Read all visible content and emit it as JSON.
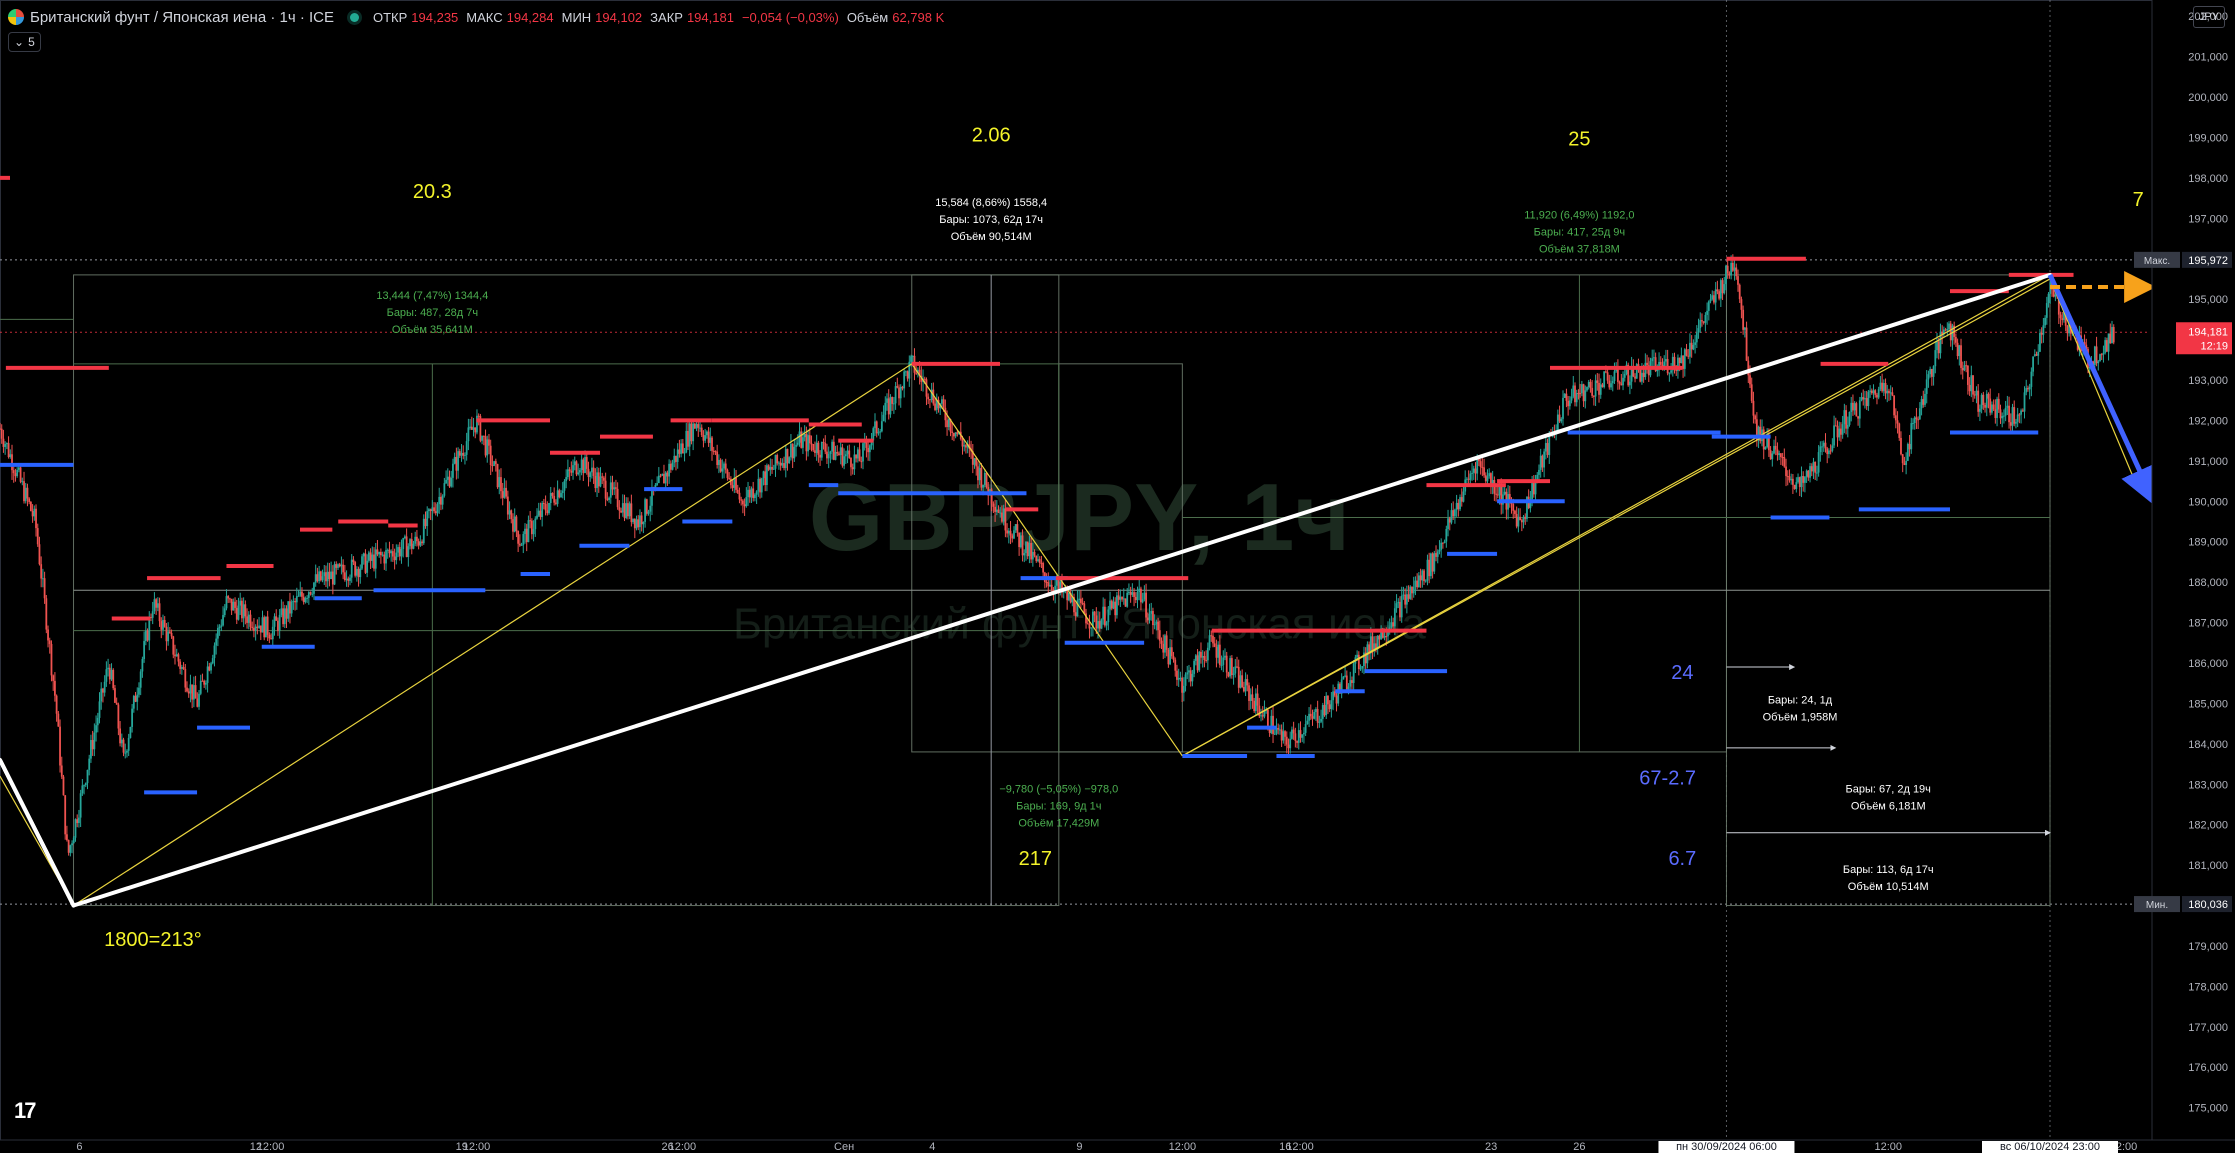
{
  "header": {
    "title": "Британский фунт / Японская иена · 1ч · ICE",
    "open_label": "ОТКР",
    "open": "194,235",
    "high_label": "МАКС",
    "high": "194,284",
    "low_label": "МИН",
    "low": "194,102",
    "close_label": "ЗАКР",
    "close": "194,181",
    "change": "−0,054 (−0,03%)",
    "volume_label": "Объём",
    "volume": "62,798 K",
    "status_color": "#22ab94"
  },
  "indicator_toggle": {
    "count": "5"
  },
  "currency_button": "JPY",
  "watermark": {
    "symbol": "GBPJPY, 1ч",
    "name": "Британский фунт / Японская иена"
  },
  "chart_data": {
    "type": "candlestick",
    "symbol": "GBPJPY",
    "timeframe": "1h",
    "ylim": [
      174.2,
      202.4
    ],
    "y_ticks": [
      "202,000",
      "201,000",
      "200,000",
      "199,000",
      "198,000",
      "197,000",
      "196,000",
      "195,000",
      "194,000",
      "193,000",
      "192,000",
      "191,000",
      "190,000",
      "189,000",
      "188,000",
      "187,000",
      "186,000",
      "185,000",
      "184,000",
      "183,000",
      "182,000",
      "181,000",
      "180,000",
      "179,000",
      "178,000",
      "177,000",
      "176,000",
      "175,000"
    ],
    "x_ticks": [
      "6",
      "12",
      "12:00",
      "19",
      "12:00",
      "26",
      "12:00",
      "Сен",
      "4",
      "9",
      "12:00",
      "16",
      "12:00",
      "23",
      "26",
      "12:00",
      "14",
      "12:00"
    ],
    "x_tick_days": [
      6,
      12,
      12.5,
      19,
      19.5,
      26,
      26.5,
      32,
      35,
      40,
      43.5,
      47,
      47.5,
      54,
      57,
      67.5,
      75,
      75.5
    ],
    "x_range_days": [
      3.3,
      76.4
    ],
    "current_price": {
      "label": "194,181",
      "countdown": "12:19",
      "color": "#f23645"
    },
    "max_marker": {
      "label": "Макс.",
      "value": "195,972"
    },
    "min_marker": {
      "label": "Мин.",
      "value": "180,036"
    },
    "crosshair_labels": [
      "пн 30/09/2024   06:00",
      "вс 06/10/2024   23:00"
    ],
    "series_outline": [
      [
        3.3,
        191.8
      ],
      [
        4.5,
        189.5
      ],
      [
        5.2,
        185.0
      ],
      [
        5.6,
        181.2
      ],
      [
        6.0,
        182.5
      ],
      [
        7.0,
        186.0
      ],
      [
        7.5,
        183.6
      ],
      [
        8.5,
        187.5
      ],
      [
        10.0,
        185.0
      ],
      [
        11.0,
        187.5
      ],
      [
        12.5,
        186.8
      ],
      [
        14.0,
        188.0
      ],
      [
        15.5,
        188.4
      ],
      [
        17.5,
        189.0
      ],
      [
        19.5,
        192.0
      ],
      [
        21.0,
        189.0
      ],
      [
        23.0,
        191.0
      ],
      [
        25.0,
        189.5
      ],
      [
        27.0,
        192.0
      ],
      [
        28.5,
        190.0
      ],
      [
        30.5,
        191.5
      ],
      [
        32.5,
        191.0
      ],
      [
        34.3,
        193.4
      ],
      [
        36.0,
        191.5
      ],
      [
        37.5,
        189.5
      ],
      [
        39.0,
        188.0
      ],
      [
        40.5,
        187.0
      ],
      [
        42.0,
        187.8
      ],
      [
        43.5,
        185.5
      ],
      [
        44.5,
        186.5
      ],
      [
        45.5,
        185.5
      ],
      [
        47.0,
        184.0
      ],
      [
        48.5,
        185.0
      ],
      [
        50.5,
        187.0
      ],
      [
        52.0,
        188.5
      ],
      [
        53.5,
        191.0
      ],
      [
        55.0,
        189.5
      ],
      [
        56.5,
        192.5
      ],
      [
        58.0,
        193.0
      ],
      [
        60.5,
        193.5
      ],
      [
        62.3,
        196.0
      ],
      [
        63.0,
        191.8
      ],
      [
        64.5,
        190.3
      ],
      [
        66.0,
        192.0
      ],
      [
        67.5,
        193.0
      ],
      [
        68.0,
        191.0
      ],
      [
        69.5,
        194.5
      ],
      [
        70.5,
        192.5
      ],
      [
        72.0,
        192.0
      ],
      [
        73.0,
        195.2
      ],
      [
        74.3,
        193.5
      ],
      [
        75.2,
        194.1
      ]
    ],
    "swing_path": [
      [
        3.3,
        183.2
      ],
      [
        5.8,
        180.0
      ],
      [
        34.3,
        193.4
      ],
      [
        43.5,
        183.7
      ],
      [
        73.0,
        195.5
      ],
      [
        76.0,
        190.3
      ]
    ],
    "horizontal_levels": [
      {
        "y": 193.3,
        "x0": 3.5,
        "x1": 7.0,
        "color": "red"
      },
      {
        "y": 190.9,
        "x0": 3.3,
        "x1": 5.8,
        "color": "blue"
      },
      {
        "y": 187.1,
        "x0": 7.1,
        "x1": 8.4,
        "color": "red"
      },
      {
        "y": 182.8,
        "x0": 8.2,
        "x1": 10.0,
        "color": "blue"
      },
      {
        "y": 188.1,
        "x0": 8.3,
        "x1": 10.8,
        "color": "red"
      },
      {
        "y": 184.4,
        "x0": 10.0,
        "x1": 11.8,
        "color": "blue"
      },
      {
        "y": 188.4,
        "x0": 11.0,
        "x1": 12.6,
        "color": "red"
      },
      {
        "y": 186.4,
        "x0": 12.2,
        "x1": 14.0,
        "color": "blue"
      },
      {
        "y": 189.3,
        "x0": 13.5,
        "x1": 14.6,
        "color": "red"
      },
      {
        "y": 187.6,
        "x0": 14.0,
        "x1": 15.6,
        "color": "blue"
      },
      {
        "y": 189.5,
        "x0": 14.8,
        "x1": 16.5,
        "color": "red"
      },
      {
        "y": 187.8,
        "x0": 16.0,
        "x1": 19.8,
        "color": "blue"
      },
      {
        "y": 189.4,
        "x0": 16.5,
        "x1": 17.5,
        "color": "red"
      },
      {
        "y": 192.0,
        "x0": 19.5,
        "x1": 22.0,
        "color": "red"
      },
      {
        "y": 188.2,
        "x0": 21.0,
        "x1": 22.0,
        "color": "blue"
      },
      {
        "y": 191.2,
        "x0": 22.0,
        "x1": 23.7,
        "color": "red"
      },
      {
        "y": 188.9,
        "x0": 23.0,
        "x1": 24.7,
        "color": "blue"
      },
      {
        "y": 191.6,
        "x0": 23.7,
        "x1": 25.5,
        "color": "red"
      },
      {
        "y": 190.3,
        "x0": 25.2,
        "x1": 26.5,
        "color": "blue"
      },
      {
        "y": 192.0,
        "x0": 26.1,
        "x1": 27.5,
        "color": "red"
      },
      {
        "y": 189.5,
        "x0": 26.5,
        "x1": 28.2,
        "color": "blue"
      },
      {
        "y": 192.0,
        "x0": 27.5,
        "x1": 30.8,
        "color": "red"
      },
      {
        "y": 191.9,
        "x0": 30.8,
        "x1": 32.6,
        "color": "red"
      },
      {
        "y": 190.4,
        "x0": 30.8,
        "x1": 31.8,
        "color": "blue"
      },
      {
        "y": 191.5,
        "x0": 31.8,
        "x1": 33.0,
        "color": "red"
      },
      {
        "y": 190.2,
        "x0": 31.8,
        "x1": 38.2,
        "color": "blue"
      },
      {
        "y": 193.4,
        "x0": 34.3,
        "x1": 37.3,
        "color": "red"
      },
      {
        "y": 189.8,
        "x0": 37.5,
        "x1": 38.6,
        "color": "red"
      },
      {
        "y": 188.1,
        "x0": 38.0,
        "x1": 39.6,
        "color": "blue"
      },
      {
        "y": 188.1,
        "x0": 39.2,
        "x1": 43.7,
        "color": "red"
      },
      {
        "y": 186.5,
        "x0": 39.5,
        "x1": 42.2,
        "color": "blue"
      },
      {
        "y": 183.7,
        "x0": 43.5,
        "x1": 45.7,
        "color": "blue"
      },
      {
        "y": 184.4,
        "x0": 45.7,
        "x1": 46.7,
        "color": "blue"
      },
      {
        "y": 186.8,
        "x0": 44.5,
        "x1": 51.8,
        "color": "red"
      },
      {
        "y": 183.7,
        "x0": 46.7,
        "x1": 48.0,
        "color": "blue"
      },
      {
        "y": 185.3,
        "x0": 48.7,
        "x1": 49.7,
        "color": "blue"
      },
      {
        "y": 185.8,
        "x0": 49.7,
        "x1": 52.5,
        "color": "blue"
      },
      {
        "y": 190.4,
        "x0": 51.8,
        "x1": 54.5,
        "color": "red"
      },
      {
        "y": 188.7,
        "x0": 52.5,
        "x1": 54.2,
        "color": "blue"
      },
      {
        "y": 190.0,
        "x0": 54.2,
        "x1": 56.5,
        "color": "blue"
      },
      {
        "y": 190.5,
        "x0": 54.2,
        "x1": 56.0,
        "color": "red"
      },
      {
        "y": 193.3,
        "x0": 56.0,
        "x1": 60.5,
        "color": "red"
      },
      {
        "y": 191.7,
        "x0": 56.6,
        "x1": 61.8,
        "color": "blue"
      },
      {
        "y": 196.0,
        "x0": 62.0,
        "x1": 64.7,
        "color": "red"
      },
      {
        "y": 191.6,
        "x0": 61.5,
        "x1": 63.5,
        "color": "blue"
      },
      {
        "y": 189.6,
        "x0": 63.5,
        "x1": 65.5,
        "color": "blue"
      },
      {
        "y": 193.4,
        "x0": 65.2,
        "x1": 67.5,
        "color": "red"
      },
      {
        "y": 189.8,
        "x0": 66.5,
        "x1": 69.6,
        "color": "blue"
      },
      {
        "y": 195.2,
        "x0": 69.6,
        "x1": 71.6,
        "color": "red"
      },
      {
        "y": 195.6,
        "x0": 71.6,
        "x1": 73.8,
        "color": "red"
      },
      {
        "y": 191.7,
        "x0": 69.6,
        "x1": 72.6,
        "color": "blue"
      }
    ],
    "trend_lines": [
      {
        "from": [
          3.3,
          183.6
        ],
        "to": [
          5.8,
          180.0
        ],
        "color": "white",
        "width": 4
      },
      {
        "from": [
          5.8,
          180.0
        ],
        "to": [
          73.0,
          195.6
        ],
        "color": "white",
        "width": 4
      }
    ],
    "projection_arrows": [
      {
        "from": [
          73.0,
          195.6
        ],
        "to": [
          76.4,
          190.2
        ],
        "color": "blue"
      },
      {
        "from": [
          73.0,
          195.3
        ],
        "to": [
          76.2,
          195.3
        ],
        "color": "orange",
        "dashed": true
      }
    ],
    "boxes": [
      {
        "x0": 5.8,
        "x1": 39.3,
        "y0": 180.0,
        "y1": 195.6
      },
      {
        "x0": 34.3,
        "x1": 62.0,
        "y0": 183.8,
        "y1": 195.6
      },
      {
        "x0": 39.3,
        "x1": 43.5,
        "y0": 183.8,
        "y1": 193.4
      },
      {
        "x0": 62.0,
        "x1": 73.0,
        "y0": 180.0,
        "y1": 195.6
      }
    ],
    "annotations": [
      {
        "text": "20.3",
        "x": 18.0,
        "y": 197.5,
        "color": "#f3f32a"
      },
      {
        "text": "2.06",
        "x": 37.0,
        "y": 198.9,
        "color": "#f3f32a"
      },
      {
        "text": "25",
        "x": 57.0,
        "y": 198.8,
        "color": "#f3f32a"
      },
      {
        "text": "7",
        "x": 76.0,
        "y": 197.3,
        "color": "#f3f32a"
      },
      {
        "text": "217",
        "x": 38.5,
        "y": 181.0,
        "color": "#f3f32a"
      },
      {
        "text": "1800=213°",
        "x": 8.5,
        "y": 179.0,
        "color": "#f3f32a"
      },
      {
        "text": "24",
        "x": 60.5,
        "y": 185.6,
        "color": "#5b6cff"
      },
      {
        "text": "67-2.7",
        "x": 60.0,
        "y": 183.0,
        "color": "#5b6cff"
      },
      {
        "text": "6.7",
        "x": 60.5,
        "y": 181.0,
        "color": "#5b6cff"
      }
    ],
    "measure_labels": [
      {
        "lines": [
          "13,444 (7,47%) 1344,4",
          "Бары: 487, 28д 7ч",
          "Объём 35,641M"
        ],
        "x": 18.0,
        "y": 195.0,
        "color": "#4caf50"
      },
      {
        "lines": [
          "15,584 (8,66%) 1558,4",
          "Бары: 1073, 62д 17ч",
          "Объём 90,514M"
        ],
        "x": 37.0,
        "y": 197.3,
        "color": "#ffffff"
      },
      {
        "lines": [
          "11,920 (6,49%) 1192,0",
          "Бары: 417, 25д 9ч",
          "Объём 37,818M"
        ],
        "x": 57.0,
        "y": 197.0,
        "color": "#4caf50"
      },
      {
        "lines": [
          "−9,780 (−5,05%) −978,0",
          "Бары: 169, 9д 1ч",
          "Объём 17,429M"
        ],
        "x": 39.3,
        "y": 182.8,
        "color": "#4caf50"
      },
      {
        "lines": [
          "Бары: 24, 1д",
          "Объём 1,958M"
        ],
        "x": 64.5,
        "y": 185.0,
        "color": "#ffffff"
      },
      {
        "lines": [
          "Бары: 67, 2д 19ч",
          "Объём 6,181M"
        ],
        "x": 67.5,
        "y": 182.8,
        "color": "#ffffff"
      },
      {
        "lines": [
          "Бары: 113, 6д 17ч",
          "Объём 10,514M"
        ],
        "x": 67.5,
        "y": 180.8,
        "color": "#ffffff"
      }
    ]
  }
}
